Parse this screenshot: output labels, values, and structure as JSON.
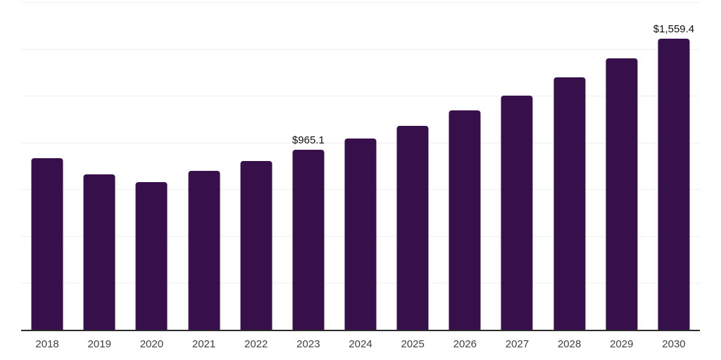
{
  "chart_data": {
    "type": "bar",
    "title": "",
    "xlabel": "",
    "ylabel": "",
    "categories": [
      "2018",
      "2019",
      "2020",
      "2021",
      "2022",
      "2023",
      "2024",
      "2025",
      "2026",
      "2027",
      "2028",
      "2029",
      "2030"
    ],
    "values": [
      922,
      835,
      793,
      853,
      904,
      965.1,
      1025,
      1093,
      1174,
      1255,
      1351,
      1452,
      1559.4
    ],
    "data_labels": [
      "",
      "",
      "",
      "",
      "",
      "$965.1",
      "",
      "",
      "",
      "",
      "",
      "",
      "$1,559.4"
    ],
    "ylim": [
      0,
      1750
    ],
    "gridline_interval": 250,
    "grid": "horizontal-only",
    "legend": "none",
    "y_tick_labels_visible": false,
    "bar_color": "#37104B",
    "gridline_color": "#f0f0f0",
    "axis_line_color": "#2b2b2b",
    "tick_label_color": "#404040",
    "data_label_color": "#0d0d0d"
  }
}
